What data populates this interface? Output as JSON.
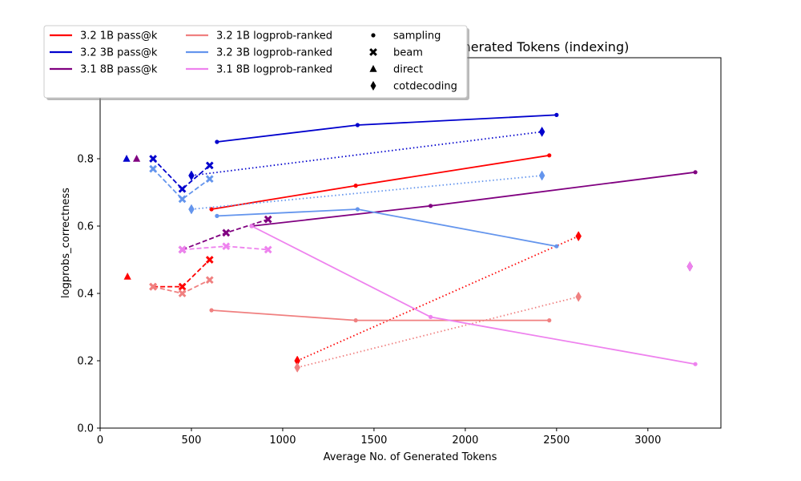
{
  "chart_data": {
    "type": "line",
    "title": "Average Correctness vs Average No. of Generated Tokens (indexing)",
    "xlabel": "Average No. of Generated Tokens",
    "ylabel": "logprobs_correctness",
    "xlim": [
      0,
      3400
    ],
    "ylim": [
      0.0,
      1.1
    ],
    "xticks": [
      0,
      500,
      1000,
      1500,
      2000,
      2500,
      3000
    ],
    "yticks": [
      0.0,
      0.2,
      0.4,
      0.6,
      0.8,
      1.0
    ],
    "grid": false,
    "legend_position": "top-left",
    "colors": {
      "3.2 1B pass@k": "#ff0000",
      "3.2 3B pass@k": "#0000cd",
      "3.1 8B pass@k": "#800080",
      "3.2 1B logprob-ranked": "#f08080",
      "3.2 3B logprob-ranked": "#6495ed",
      "3.1 8B logprob-ranked": "#ee82ee"
    },
    "legend": {
      "series": [
        "3.2 1B pass@k",
        "3.2 3B pass@k",
        "3.1 8B pass@k",
        "3.2 1B logprob-ranked",
        "3.2 3B logprob-ranked",
        "3.1 8B logprob-ranked"
      ],
      "methods": [
        {
          "label": "sampling",
          "marker": "point"
        },
        {
          "label": "beam",
          "marker": "x"
        },
        {
          "label": "direct",
          "marker": "triangle"
        },
        {
          "label": "cotdecoding",
          "marker": "thin-diamond"
        }
      ]
    },
    "series": [
      {
        "model": "3.2 1B pass@k",
        "method": "sampling",
        "x": [
          610,
          1400,
          2460
        ],
        "y": [
          0.65,
          0.72,
          0.81
        ]
      },
      {
        "model": "3.2 1B pass@k",
        "method": "beam",
        "x": [
          290,
          450,
          600
        ],
        "y": [
          0.42,
          0.42,
          0.5
        ]
      },
      {
        "model": "3.2 1B pass@k",
        "method": "direct",
        "x": [
          150
        ],
        "y": [
          0.45
        ]
      },
      {
        "model": "3.2 1B pass@k",
        "method": "cotdecoding",
        "x": [
          1080,
          2620
        ],
        "y": [
          0.2,
          0.57
        ]
      },
      {
        "model": "3.2 3B pass@k",
        "method": "sampling",
        "x": [
          640,
          1410,
          2500
        ],
        "y": [
          0.85,
          0.9,
          0.93
        ]
      },
      {
        "model": "3.2 3B pass@k",
        "method": "beam",
        "x": [
          290,
          450,
          600
        ],
        "y": [
          0.8,
          0.71,
          0.78
        ]
      },
      {
        "model": "3.2 3B pass@k",
        "method": "direct",
        "x": [
          145
        ],
        "y": [
          0.8
        ]
      },
      {
        "model": "3.2 3B pass@k",
        "method": "cotdecoding",
        "x": [
          500,
          2420
        ],
        "y": [
          0.75,
          0.88
        ]
      },
      {
        "model": "3.1 8B pass@k",
        "method": "sampling",
        "x": [
          830,
          1810,
          3260
        ],
        "y": [
          0.6,
          0.66,
          0.76
        ]
      },
      {
        "model": "3.1 8B pass@k",
        "method": "beam",
        "x": [
          450,
          690,
          920
        ],
        "y": [
          0.53,
          0.58,
          0.62
        ]
      },
      {
        "model": "3.1 8B pass@k",
        "method": "direct",
        "x": [
          200
        ],
        "y": [
          0.8
        ]
      },
      {
        "model": "3.1 8B pass@k",
        "method": "cotdecoding",
        "x": [
          3230
        ],
        "y": [
          0.48
        ]
      },
      {
        "model": "3.2 1B logprob-ranked",
        "method": "sampling",
        "x": [
          610,
          1400,
          2460
        ],
        "y": [
          0.35,
          0.32,
          0.32
        ]
      },
      {
        "model": "3.2 1B logprob-ranked",
        "method": "beam",
        "x": [
          290,
          450,
          600
        ],
        "y": [
          0.42,
          0.4,
          0.44
        ]
      },
      {
        "model": "3.2 1B logprob-ranked",
        "method": "cotdecoding",
        "x": [
          1080,
          2620
        ],
        "y": [
          0.18,
          0.39
        ]
      },
      {
        "model": "3.2 3B logprob-ranked",
        "method": "sampling",
        "x": [
          640,
          1410,
          2500
        ],
        "y": [
          0.63,
          0.65,
          0.54
        ]
      },
      {
        "model": "3.2 3B logprob-ranked",
        "method": "beam",
        "x": [
          290,
          450,
          600
        ],
        "y": [
          0.77,
          0.68,
          0.74
        ]
      },
      {
        "model": "3.2 3B logprob-ranked",
        "method": "cotdecoding",
        "x": [
          500,
          2420
        ],
        "y": [
          0.65,
          0.75
        ]
      },
      {
        "model": "3.1 8B logprob-ranked",
        "method": "sampling",
        "x": [
          830,
          1810,
          3260
        ],
        "y": [
          0.6,
          0.33,
          0.19
        ]
      },
      {
        "model": "3.1 8B logprob-ranked",
        "method": "beam",
        "x": [
          450,
          690,
          920
        ],
        "y": [
          0.53,
          0.54,
          0.53
        ]
      },
      {
        "model": "3.1 8B logprob-ranked",
        "method": "cotdecoding",
        "x": [
          3230
        ],
        "y": [
          0.48
        ]
      }
    ]
  }
}
